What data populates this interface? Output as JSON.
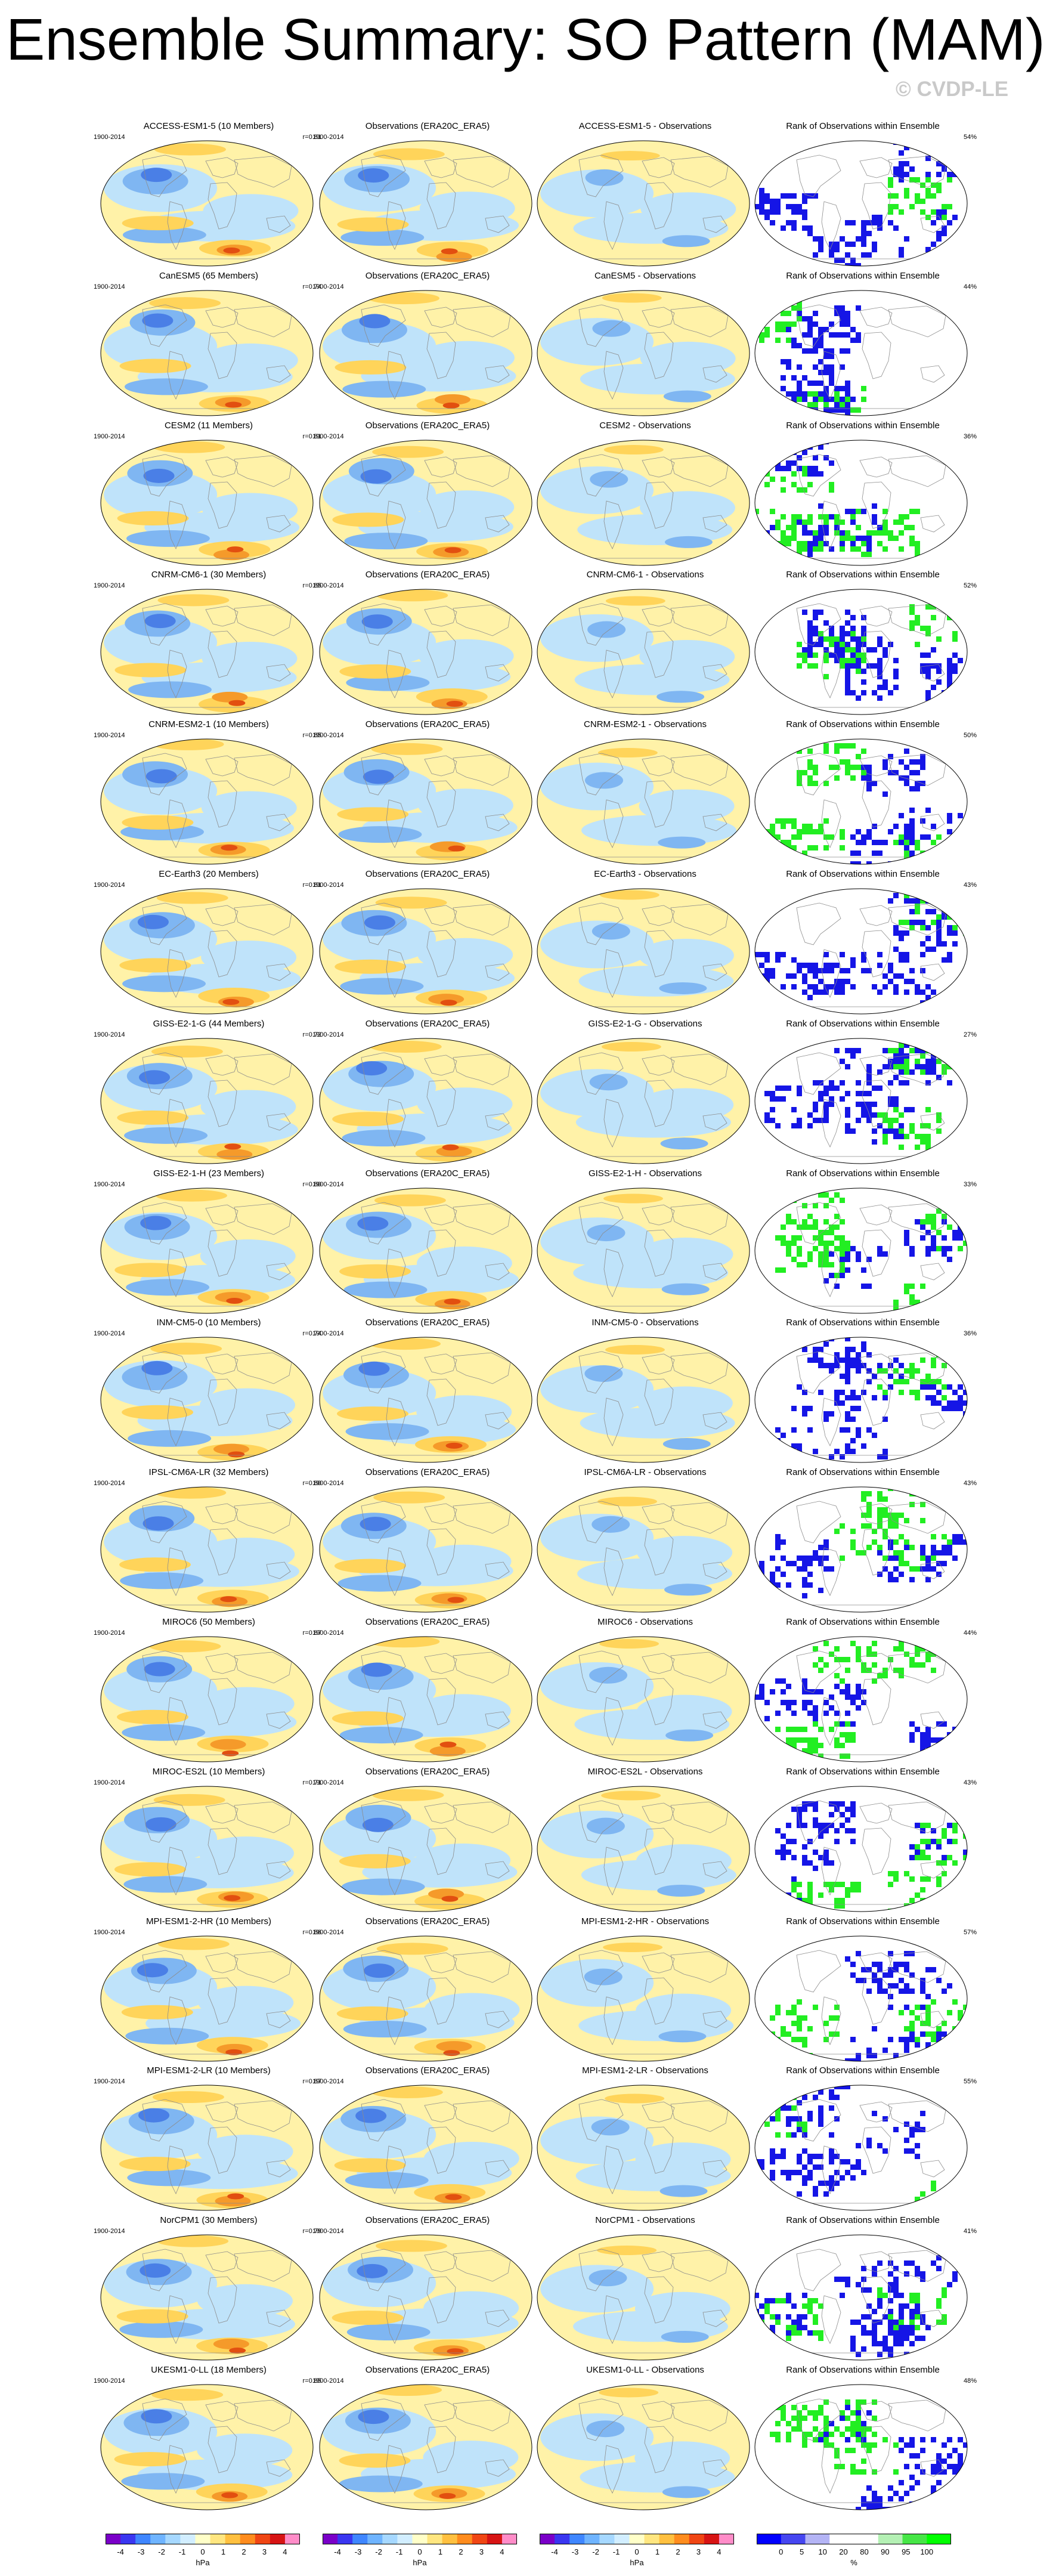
{
  "header": {
    "title": "Ensemble Summary: SO Pattern (MAM)",
    "credit": "© CVDP-LE"
  },
  "columns": {
    "observations_title": "Observations (ERA20C_ERA5)",
    "difference_suffix": " - Observations",
    "rank_title": "Rank of Observations within Ensemble",
    "period": "1900-2014"
  },
  "rows": [
    {
      "model": "ACCESS-ESM1-5",
      "title": "ACCESS-ESM1-5 (10 Members)",
      "corr": "r=0.81",
      "rank_pct": "54%"
    },
    {
      "model": "CanESM5",
      "title": "CanESM5 (65 Members)",
      "corr": "r=0.74",
      "rank_pct": "44%"
    },
    {
      "model": "CESM2",
      "title": "CESM2 (11 Members)",
      "corr": "r=0.81",
      "rank_pct": "36%"
    },
    {
      "model": "CNRM-CM6-1",
      "title": "CNRM-CM6-1 (30 Members)",
      "corr": "r=0.85",
      "rank_pct": "52%"
    },
    {
      "model": "CNRM-ESM2-1",
      "title": "CNRM-ESM2-1 (10 Members)",
      "corr": "r=0.85",
      "rank_pct": "50%"
    },
    {
      "model": "EC-Earth3",
      "title": "EC-Earth3 (20 Members)",
      "corr": "r=0.81",
      "rank_pct": "43%"
    },
    {
      "model": "GISS-E2-1-G",
      "title": "GISS-E2-1-G (44 Members)",
      "corr": "r=0.72",
      "rank_pct": "27%"
    },
    {
      "model": "GISS-E2-1-H",
      "title": "GISS-E2-1-H (23 Members)",
      "corr": "r=0.80",
      "rank_pct": "33%"
    },
    {
      "model": "INM-CM5-0",
      "title": "INM-CM5-0 (10 Members)",
      "corr": "r=0.74",
      "rank_pct": "36%"
    },
    {
      "model": "IPSL-CM6A-LR",
      "title": "IPSL-CM6A-LR (32 Members)",
      "corr": "r=0.80",
      "rank_pct": "43%"
    },
    {
      "model": "MIROC6",
      "title": "MIROC6 (50 Members)",
      "corr": "r=0.87",
      "rank_pct": "44%"
    },
    {
      "model": "MIROC-ES2L",
      "title": "MIROC-ES2L (10 Members)",
      "corr": "r=0.71",
      "rank_pct": "43%"
    },
    {
      "model": "MPI-ESM1-2-HR",
      "title": "MPI-ESM1-2-HR (10 Members)",
      "corr": "r=0.86",
      "rank_pct": "57%"
    },
    {
      "model": "MPI-ESM1-2-LR",
      "title": "MPI-ESM1-2-LR (10 Members)",
      "corr": "r=0.87",
      "rank_pct": "55%"
    },
    {
      "model": "NorCPM1",
      "title": "NorCPM1 (30 Members)",
      "corr": "r=0.79",
      "rank_pct": "41%"
    },
    {
      "model": "UKESM1-0-LL",
      "title": "UKESM1-0-LL (18 Members)",
      "corr": "r=0.85",
      "rank_pct": "48%"
    }
  ],
  "colorbars": {
    "pressure": {
      "ticks": [
        "-4",
        "-3",
        "-2",
        "-1",
        "0",
        "1",
        "2",
        "3",
        "4"
      ],
      "unit": "hPa",
      "colors": [
        "#7a00c8",
        "#3a36f0",
        "#3f86ff",
        "#6fb4ff",
        "#a6d8ff",
        "#d2eeff",
        "#ffffc8",
        "#ffe680",
        "#ffc040",
        "#ff8c1e",
        "#f04614",
        "#d71414",
        "#ff8cc8"
      ]
    },
    "rank": {
      "ticks": [
        "0",
        "5",
        "10",
        "20",
        "80",
        "90",
        "95",
        "100"
      ],
      "unit": "%",
      "colors": [
        "#0000ff",
        "#4646f0",
        "#b4b4f5",
        "#ffffff",
        "#ffffff",
        "#b4f0b4",
        "#46e646",
        "#00ff00"
      ]
    }
  },
  "map_colors": {
    "neg3": "#4a7fe6",
    "neg2": "#7fb6f2",
    "neg1": "#bfe3fa",
    "pos1": "#fff2a8",
    "pos2": "#ffd45a",
    "pos3": "#f59a2a",
    "pos4": "#e24f10",
    "rank_low": "#1515e6",
    "rank_high": "#22ee22",
    "land": "#8c8c8c"
  }
}
